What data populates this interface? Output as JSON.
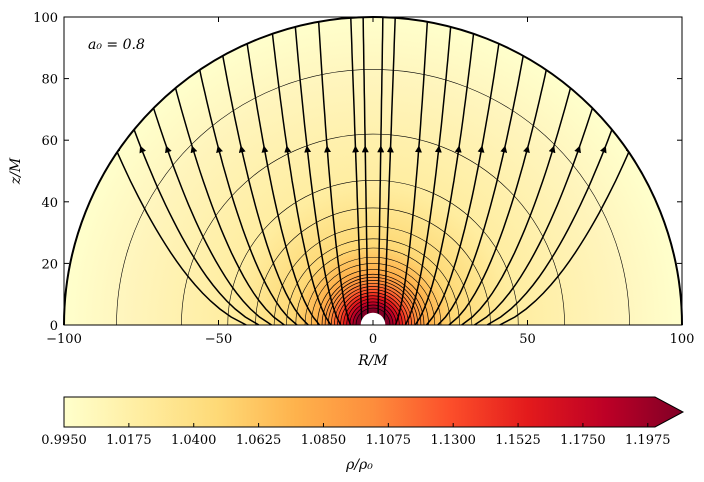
{
  "chart_data": [
    {
      "type": "heatmap",
      "annotation": "a₀ = 0.8",
      "xlabel": "R/M",
      "ylabel": "z/M",
      "xlim": [
        -100,
        100
      ],
      "ylim": [
        0,
        100
      ],
      "x_ticks": [
        -100,
        -50,
        0,
        50,
        100
      ],
      "x_tick_labels": [
        "−100",
        "−50",
        "0",
        "50",
        "100"
      ],
      "y_ticks": [
        0,
        20,
        40,
        60,
        80,
        100
      ],
      "y_tick_labels": [
        "0",
        "20",
        "40",
        "60",
        "80",
        "100"
      ],
      "domain_outer_radius": 100,
      "black_hole_radius": 4,
      "density_contour_radii": [
        5.5,
        6.5,
        7.5,
        8.5,
        9.5,
        10.5,
        11.5,
        12.5,
        13.5,
        14.5,
        15.5,
        16.5,
        18,
        20,
        22,
        25,
        28,
        32,
        38,
        47,
        62,
        83
      ],
      "streamline_footpoints_R": [
        -90,
        -81,
        -72,
        -63,
        -54,
        -46,
        -38,
        -30,
        -23,
        -16,
        -9,
        -4,
        4,
        9,
        16,
        23,
        30,
        38,
        46,
        54,
        63,
        72,
        81,
        90
      ]
    },
    {
      "type": "colorbar",
      "label": "ρ/ρ₀",
      "extend": "max",
      "range": [
        0.995,
        1.2
      ],
      "ticks": [
        0.995,
        1.0175,
        1.04,
        1.0625,
        1.085,
        1.1075,
        1.13,
        1.1525,
        1.175,
        1.1975
      ],
      "tick_labels": [
        "0.9950",
        "1.0175",
        "1.0400",
        "1.0625",
        "1.0850",
        "1.1075",
        "1.1300",
        "1.1525",
        "1.1750",
        "1.1975"
      ],
      "colormap": [
        "#ffffcc",
        "#ffeda0",
        "#fed976",
        "#feb24c",
        "#fd8d3c",
        "#fc4e2a",
        "#e31a1c",
        "#bd0026",
        "#800026"
      ]
    }
  ]
}
